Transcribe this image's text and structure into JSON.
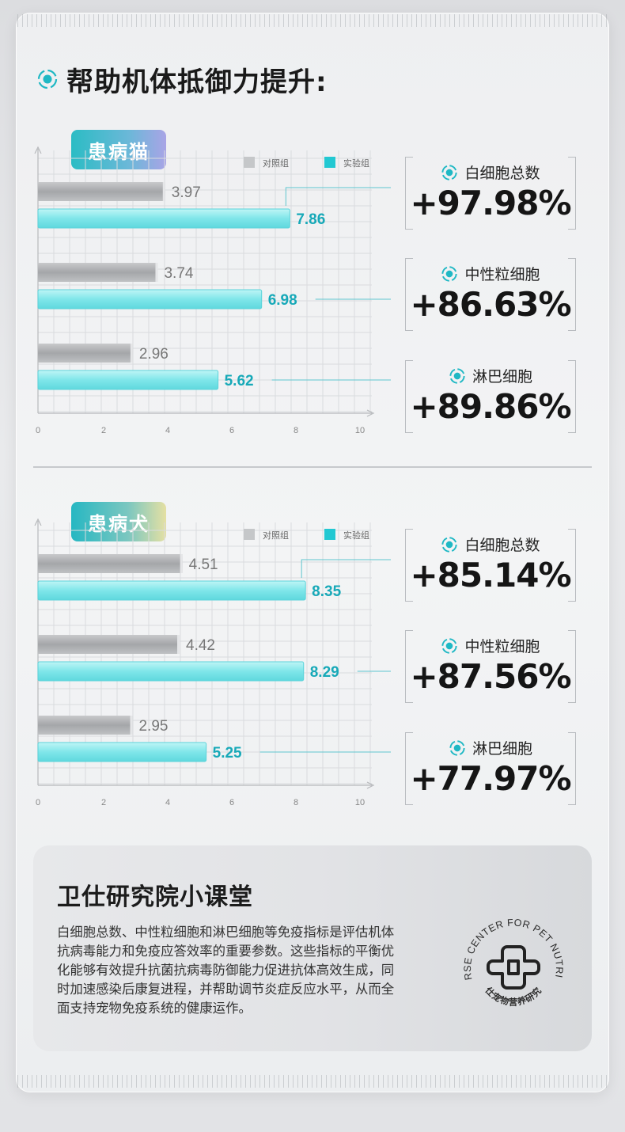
{
  "heading": {
    "text": "帮助机体抵御力提升:",
    "icon": "target-icon"
  },
  "sections": [
    {
      "badge": "患病猫",
      "legend": [
        "对照组",
        "实验组"
      ],
      "stats": [
        {
          "label": "白细胞总数",
          "value": "+97.98%"
        },
        {
          "label": "中性粒细胞",
          "value": "+86.63%"
        },
        {
          "label": "淋巴细胞",
          "value": "+89.86%"
        }
      ]
    },
    {
      "badge": "患病犬",
      "legend": [
        "对照组",
        "实验组"
      ],
      "stats": [
        {
          "label": "白细胞总数",
          "value": "+85.14%"
        },
        {
          "label": "中性粒细胞",
          "value": "+87.56%"
        },
        {
          "label": "淋巴细胞",
          "value": "+77.97%"
        }
      ]
    }
  ],
  "chart_data": [
    {
      "type": "bar",
      "orientation": "horizontal",
      "categories": [
        "白细胞总数",
        "中性粒细胞",
        "淋巴细胞"
      ],
      "series": [
        {
          "name": "对照组",
          "values": [
            3.97,
            3.74,
            2.96
          ]
        },
        {
          "name": "实验组",
          "values": [
            7.86,
            6.98,
            5.62
          ]
        }
      ],
      "xticks": [
        "0",
        "2",
        "4",
        "6",
        "8",
        "10"
      ],
      "xlim": [
        0,
        10
      ],
      "grid": true,
      "legend": "top-right"
    },
    {
      "type": "bar",
      "orientation": "horizontal",
      "categories": [
        "白细胞总数",
        "中性粒细胞",
        "淋巴细胞"
      ],
      "series": [
        {
          "name": "对照组",
          "values": [
            4.51,
            4.42,
            2.95
          ]
        },
        {
          "name": "实验组",
          "values": [
            8.35,
            8.29,
            5.25
          ]
        }
      ],
      "xticks": [
        "0",
        "2",
        "4",
        "6",
        "8",
        "10"
      ],
      "xlim": [
        0,
        10
      ],
      "grid": true,
      "legend": "top-right"
    }
  ],
  "colors": {
    "accent": "#1fb8c4",
    "control_bar": "#a8aaad",
    "experiment_bar": "#7fe6ea",
    "experiment_text": "#17a9b8"
  },
  "info": {
    "title": "卫仕研究院小课堂",
    "body": "白细胞总数、中性粒细胞和淋巴细胞等免疫指标是评估机体抗病毒能力和免疫应答效率的重要参数。这些指标的平衡优化能够有效提升抗菌抗病毒防御能力促进抗体高效生成，同时加速感染后康复进程，并帮助调节炎症反应水平，从而全面支持宠物免疫系统的健康运作。",
    "logo_ring_text": "NOURSE CENTER FOR PET NUTRITION",
    "logo_cn_text": "卫仕宠物营养研究院"
  }
}
